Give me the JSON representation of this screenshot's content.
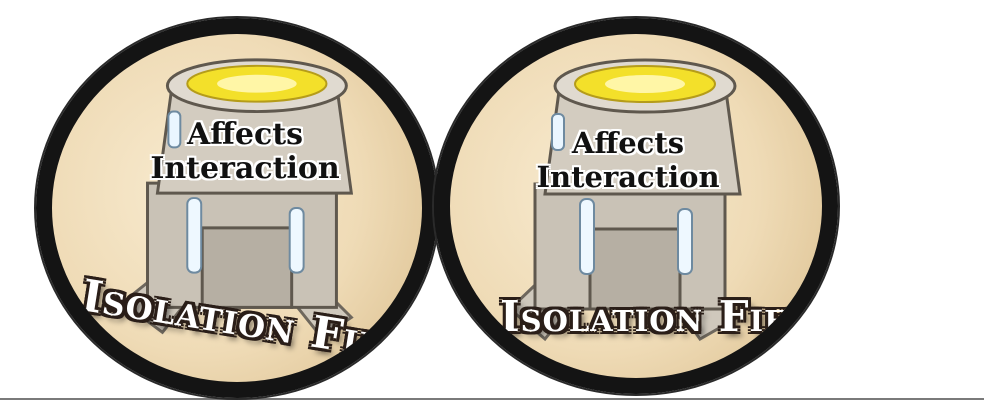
{
  "tokens": [
    {
      "affects_line1": "Affects",
      "affects_line2": "Interaction",
      "title": "Isolation Field",
      "art_icon": "isolation-field-tower-icon"
    },
    {
      "affects_line1": "Affects",
      "affects_line2": "Interaction",
      "title": "Isolation Field",
      "art_icon": "isolation-field-tower-icon"
    }
  ],
  "colors": {
    "rim": "#141414",
    "parchment": "#efdbb6",
    "tower_metal": "#c9c2b6",
    "energy_glow": "#f3e02a"
  }
}
